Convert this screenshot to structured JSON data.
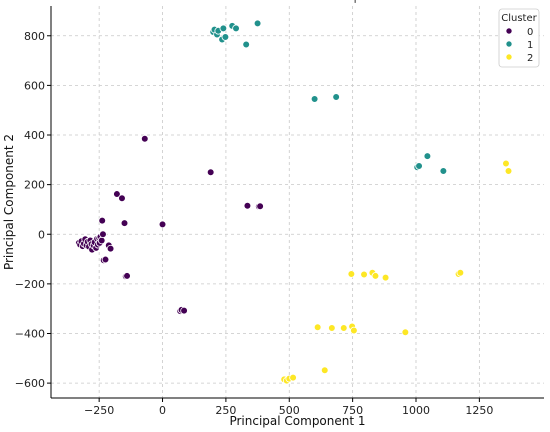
{
  "chart_data": {
    "type": "scatter",
    "title": "",
    "xlabel": "Principal Component 1",
    "ylabel": "Principal Component 2",
    "xlim": [
      -440,
      1505
    ],
    "ylim": [
      -660,
      920
    ],
    "xticks": [
      -250,
      0,
      250,
      500,
      750,
      1000,
      1250
    ],
    "yticks": [
      -600,
      -400,
      -200,
      0,
      200,
      400,
      600,
      800
    ],
    "xtick_labels": [
      "−250",
      "0",
      "250",
      "500",
      "750",
      "1000",
      "1250"
    ],
    "ytick_labels": [
      "−600",
      "−400",
      "−200",
      "0",
      "200",
      "400",
      "600",
      "800"
    ],
    "grid": true,
    "grid_style": "dashed",
    "legend": {
      "title": "Cluster",
      "placement": "top-right",
      "entries": [
        "0",
        "1",
        "2"
      ]
    },
    "series": [
      {
        "name": "0",
        "color": "#440154",
        "points": [
          [
            -330,
            -35
          ],
          [
            -325,
            -42
          ],
          [
            -320,
            -28
          ],
          [
            -315,
            -48
          ],
          [
            -310,
            -38
          ],
          [
            -305,
            -20
          ],
          [
            -300,
            -45
          ],
          [
            -295,
            -30
          ],
          [
            -290,
            -50
          ],
          [
            -285,
            -25
          ],
          [
            -280,
            -40
          ],
          [
            -278,
            -62
          ],
          [
            -272,
            -45
          ],
          [
            -268,
            -32
          ],
          [
            -262,
            -55
          ],
          [
            -258,
            -18
          ],
          [
            -255,
            -42
          ],
          [
            -250,
            -15
          ],
          [
            -248,
            -35
          ],
          [
            -245,
            -10
          ],
          [
            -240,
            -25
          ],
          [
            -238,
            55
          ],
          [
            -235,
            0
          ],
          [
            -232,
            -105
          ],
          [
            -225,
            -102
          ],
          [
            -212,
            -45
          ],
          [
            -205,
            -58
          ],
          [
            -180,
            162
          ],
          [
            -160,
            145
          ],
          [
            -150,
            45
          ],
          [
            -145,
            -170
          ],
          [
            -140,
            -168
          ],
          [
            -70,
            385
          ],
          [
            0,
            40
          ],
          [
            70,
            -310
          ],
          [
            75,
            -305
          ],
          [
            85,
            -308
          ],
          [
            190,
            250
          ],
          [
            335,
            115
          ],
          [
            380,
            112
          ],
          [
            385,
            113
          ]
        ]
      },
      {
        "name": "1",
        "color": "#21918c",
        "points": [
          [
            200,
            815
          ],
          [
            205,
            825
          ],
          [
            215,
            805
          ],
          [
            220,
            820
          ],
          [
            235,
            785
          ],
          [
            240,
            830
          ],
          [
            248,
            795
          ],
          [
            275,
            840
          ],
          [
            290,
            830
          ],
          [
            330,
            765
          ],
          [
            375,
            850
          ],
          [
            600,
            545
          ],
          [
            685,
            553
          ],
          [
            1005,
            270
          ],
          [
            1012,
            275
          ],
          [
            1045,
            315
          ],
          [
            1108,
            255
          ]
        ]
      },
      {
        "name": "2",
        "color": "#fde725",
        "points": [
          [
            480,
            -585
          ],
          [
            490,
            -590
          ],
          [
            500,
            -582
          ],
          [
            515,
            -578
          ],
          [
            612,
            -375
          ],
          [
            640,
            -548
          ],
          [
            668,
            -378
          ],
          [
            715,
            -378
          ],
          [
            745,
            -160
          ],
          [
            748,
            -372
          ],
          [
            755,
            -388
          ],
          [
            795,
            -162
          ],
          [
            828,
            -155
          ],
          [
            840,
            -168
          ],
          [
            880,
            -175
          ],
          [
            958,
            -395
          ],
          [
            1168,
            -160
          ],
          [
            1175,
            -155
          ],
          [
            1355,
            285
          ],
          [
            1365,
            255
          ]
        ]
      }
    ],
    "annotations": [
      {
        "text": "'",
        "x": 760,
        "y": 920
      }
    ]
  }
}
